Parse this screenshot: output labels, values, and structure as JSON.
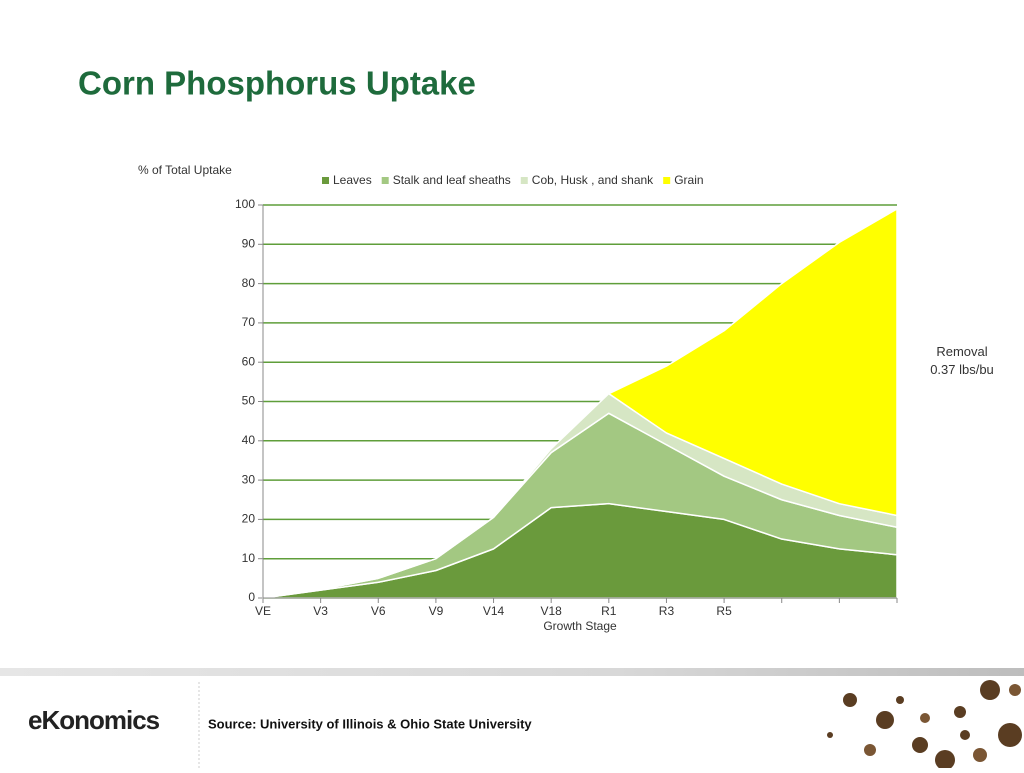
{
  "chart_data": {
    "type": "area",
    "title": "Corn Phosphorus Uptake",
    "y_axis_label": "% of Total Uptake",
    "x_axis_label": "Growth Stage",
    "annotation": "Removal\n0.37 lbs/bu",
    "categories": [
      "VE",
      "V3",
      "V6",
      "V9",
      "V14",
      "V18",
      "R1",
      "R3",
      "R5",
      null,
      null,
      null
    ],
    "series": [
      {
        "name": "Leaves",
        "color": "#6a9a3c",
        "values": [
          0,
          2,
          4,
          7,
          12.5,
          23,
          24,
          22,
          20,
          15,
          12.5,
          11
        ]
      },
      {
        "name": "Stalk and leaf sheaths",
        "color": "#a3c882",
        "values": [
          0,
          0.2,
          1,
          3,
          8,
          14,
          23,
          17,
          11,
          10,
          8.5,
          7
        ]
      },
      {
        "name": "Cob, Husk , and shank",
        "color": "#d6e6c4",
        "values": [
          0,
          0,
          0,
          0,
          0,
          1,
          5,
          3,
          4.5,
          4,
          3,
          3
        ]
      },
      {
        "name": "Grain",
        "color": "#ffff00",
        "values": [
          null,
          null,
          null,
          null,
          null,
          null,
          0,
          17,
          32.5,
          51,
          66.5,
          78
        ]
      }
    ],
    "ylim": [
      0,
      100
    ],
    "yticks": [
      0,
      10,
      20,
      30,
      40,
      50,
      60,
      70,
      80,
      90,
      100
    ],
    "grid": true,
    "stacked": true,
    "legend": "top"
  },
  "footer": {
    "logo": "eKonomics",
    "source": "Source: University of Illinois & Ohio State University"
  }
}
